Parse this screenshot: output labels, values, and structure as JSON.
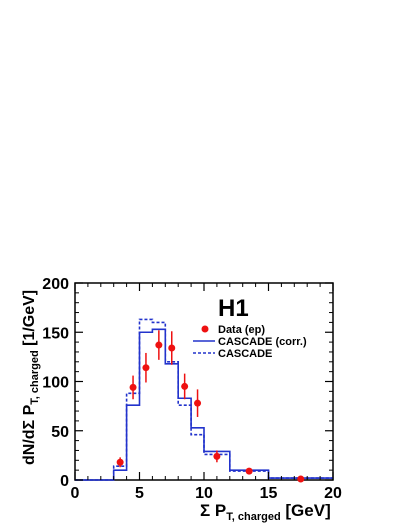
{
  "chart_data": {
    "type": "line",
    "experiment_label": "H1",
    "xlabel": {
      "main": "Σ P",
      "sub": "T, charged",
      "unit": " [GeV]"
    },
    "ylabel": {
      "main": "dN/dΣ P",
      "sub": "T, charged",
      "unit": " [1/GeV]"
    },
    "xlim": [
      0,
      20
    ],
    "ylim": [
      0,
      200
    ],
    "x_ticks": [
      0,
      5,
      10,
      15,
      20
    ],
    "y_ticks": [
      0,
      50,
      100,
      150,
      200
    ],
    "legend_placement": "top-right",
    "legend": [
      {
        "label": "Data (ep)",
        "style": "marker",
        "color": "#ee1111"
      },
      {
        "label": "CASCADE (corr.)",
        "style": "solid",
        "color": "#2233cc"
      },
      {
        "label": "CASCADE",
        "style": "dashed",
        "color": "#2233cc"
      }
    ],
    "data_points": {
      "name": "Data (ep)",
      "color": "#ee1111",
      "points": [
        {
          "x": 3.5,
          "y": 18,
          "err": 5
        },
        {
          "x": 4.5,
          "y": 94,
          "err": 12
        },
        {
          "x": 5.5,
          "y": 114,
          "err": 15
        },
        {
          "x": 6.5,
          "y": 137,
          "err": 15
        },
        {
          "x": 7.5,
          "y": 134,
          "err": 17
        },
        {
          "x": 8.5,
          "y": 95,
          "err": 13
        },
        {
          "x": 9.5,
          "y": 78,
          "err": 14
        },
        {
          "x": 11.0,
          "y": 24,
          "err": 6
        },
        {
          "x": 13.5,
          "y": 9,
          "err": 2
        },
        {
          "x": 17.5,
          "y": 1,
          "err": 0.5
        }
      ]
    },
    "histograms": [
      {
        "name": "CASCADE (corr.)",
        "style": "solid",
        "color": "#2233cc",
        "edges": [
          0,
          3,
          4,
          5,
          6,
          7,
          8,
          9,
          10,
          12,
          15,
          20
        ],
        "values": [
          0,
          10,
          76,
          150,
          153,
          118,
          83,
          53,
          29,
          10,
          2
        ]
      },
      {
        "name": "CASCADE",
        "style": "dashed",
        "color": "#2233cc",
        "edges": [
          0,
          3,
          4,
          5,
          6,
          7,
          8,
          9,
          10,
          12,
          15,
          20
        ],
        "values": [
          0,
          14,
          88,
          163,
          160,
          120,
          76,
          46,
          26,
          9,
          2
        ]
      }
    ]
  }
}
